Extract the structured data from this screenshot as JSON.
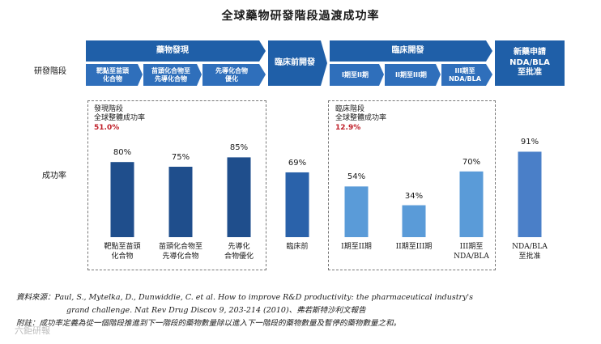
{
  "title": "全球藥物研發階段過渡成功率",
  "row_labels": {
    "stages": "研發階段",
    "rate": "成功率"
  },
  "banners": {
    "discovery": "藥物發現",
    "preclinical": "臨床前開發",
    "clinical": "臨床開發",
    "nda": "新藥申請\nNDA/BLA\n至批准"
  },
  "sub_stages": [
    "靶點至苗頭\n化合物",
    "苗頭化合物至\n先導化合物",
    "先導化合物\n優化",
    "I期至II期",
    "II期至III期",
    "III期至\nNDA/BLA"
  ],
  "phase_boxes": [
    {
      "line1": "發現階段",
      "line2": "全球整體成功率",
      "rate": "51.0%"
    },
    {
      "line1": "臨床階段",
      "line2": "全球整體成功率",
      "rate": "12.9%"
    }
  ],
  "chart_data": {
    "type": "bar",
    "title": "全球藥物研發階段過渡成功率",
    "ylabel": "成功率",
    "ylim": [
      0,
      100
    ],
    "categories": [
      "靶點至苗頭\n化合物",
      "苗頭化合物至\n先導化合物",
      "先導化\n合物優化",
      "臨床前",
      "I期至II期",
      "II期至III期",
      "III期至\nNDA/BLA",
      "NDA/BLA\n至批准"
    ],
    "values": [
      80,
      75,
      85,
      69,
      54,
      34,
      70,
      91
    ],
    "value_labels": [
      "80%",
      "75%",
      "85%",
      "69%",
      "54%",
      "34%",
      "70%",
      "91%"
    ],
    "colors": [
      "#1f4e8c",
      "#1f4e8c",
      "#1f4e8c",
      "#2a62aa",
      "#5a9bd8",
      "#5a9bd8",
      "#5a9bd8",
      "#4a7fc8"
    ]
  },
  "notes": {
    "source_label": "資料來源：",
    "source_text": "Paul, S., Mytelka, D., Dunwiddie, C. et al. How to improve R&D productivity: the pharmaceutical industry's",
    "source_text2": "grand challenge. Nat Rev Drug Discov 9, 203-214 (2010)、弗若斯特沙利文報告",
    "note_label": "附註：",
    "note_text": "成功率定義為從一個階段推進到下一階段的藥物數量除以進入下一階段的藥物數量及暫停的藥物數量之和。"
  },
  "watermark": "六鉅研報"
}
